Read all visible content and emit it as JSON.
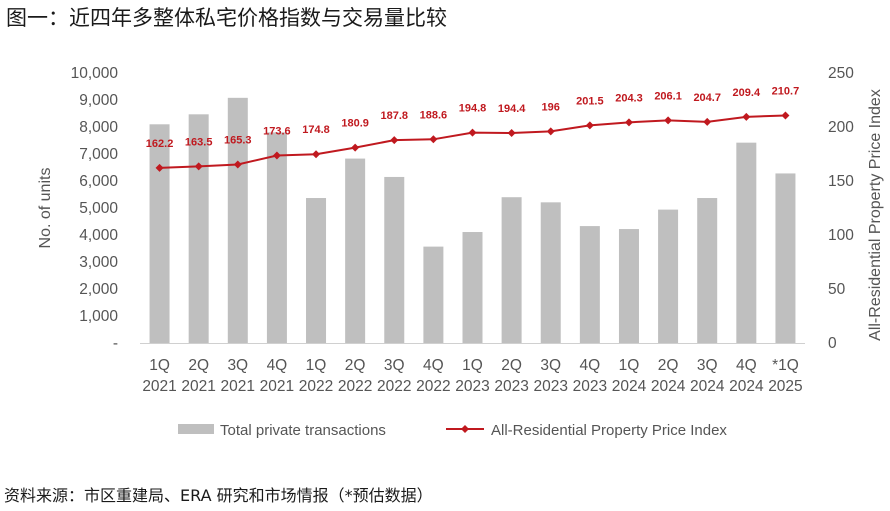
{
  "title": "图一：近四年多整体私宅价格指数与交易量比较",
  "source": "资料来源：市区重建局、ERA 研究和市场情报（*预估数据）",
  "chart_data": {
    "type": "bar+line",
    "categories": [
      [
        "1Q",
        "2021"
      ],
      [
        "2Q",
        "2021"
      ],
      [
        "3Q",
        "2021"
      ],
      [
        "4Q",
        "2021"
      ],
      [
        "1Q",
        "2022"
      ],
      [
        "2Q",
        "2022"
      ],
      [
        "3Q",
        "2022"
      ],
      [
        "4Q",
        "2022"
      ],
      [
        "1Q",
        "2023"
      ],
      [
        "2Q",
        "2023"
      ],
      [
        "3Q",
        "2023"
      ],
      [
        "4Q",
        "2023"
      ],
      [
        "1Q",
        "2024"
      ],
      [
        "2Q",
        "2024"
      ],
      [
        "3Q",
        "2024"
      ],
      [
        "4Q",
        "2024"
      ],
      [
        "*1Q",
        "2025"
      ]
    ],
    "series": [
      {
        "name": "Total private transactions",
        "type": "bar",
        "axis": "left",
        "color": "#bfbfbf",
        "values": [
          8100,
          8470,
          9080,
          7800,
          5370,
          6830,
          6150,
          3570,
          4110,
          5400,
          5210,
          4330,
          4220,
          4940,
          5370,
          7420,
          6280
        ]
      },
      {
        "name": "All-Residential Property Price Index",
        "type": "line",
        "axis": "right",
        "color": "#c0191f",
        "values": [
          162.2,
          163.5,
          165.3,
          173.6,
          174.8,
          180.9,
          187.8,
          188.6,
          194.8,
          194.4,
          196,
          201.5,
          204.3,
          206.1,
          204.7,
          209.4,
          210.7
        ],
        "labels": [
          "162.2",
          "163.5",
          "165.3",
          "173.6",
          "174.8",
          "180.9",
          "187.8",
          "188.6",
          "194.8",
          "194.4",
          "196",
          "201.5",
          "204.3",
          "206.1",
          "204.7",
          "209.4",
          "210.7"
        ]
      }
    ],
    "y_left": {
      "label": "No. of units",
      "range": [
        0,
        10000
      ],
      "ticks": [
        0,
        1000,
        2000,
        3000,
        4000,
        5000,
        6000,
        7000,
        8000,
        9000,
        10000
      ],
      "tick_labels": [
        "-",
        "1,000",
        "2,000",
        "3,000",
        "4,000",
        "5,000",
        "6,000",
        "7,000",
        "8,000",
        "9,000",
        "10,000"
      ]
    },
    "y_right": {
      "label": "All-Residential Property Price Index",
      "range": [
        0,
        250
      ],
      "ticks": [
        0,
        50,
        100,
        150,
        200,
        250
      ],
      "tick_labels": [
        "0",
        "50",
        "100",
        "150",
        "200",
        "250"
      ]
    },
    "grid": false,
    "legend": "bottom"
  }
}
